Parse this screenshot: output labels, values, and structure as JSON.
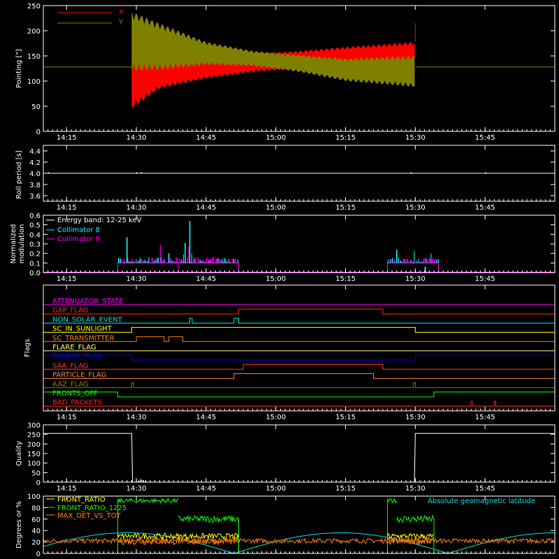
{
  "x_ticks": [
    "14:15",
    "14:30",
    "14:45",
    "15:00",
    "15:15",
    "15:30",
    "15:45"
  ],
  "chart_data": [
    {
      "type": "line",
      "name": "pointing",
      "ylabel": "Pointing [\"]",
      "ylim": [
        0,
        250
      ],
      "yticks": [
        "0",
        "50",
        "100",
        "150",
        "200",
        "250"
      ],
      "legend": [
        "X",
        "Y"
      ],
      "colors": [
        "#ff0000",
        "#808000"
      ],
      "baseline": 128,
      "active_range": [
        "14:29",
        "15:30"
      ],
      "x_envelope": {
        "times": [
          "14:29",
          "14:35",
          "14:45",
          "14:55",
          "15:05",
          "15:15",
          "15:30"
        ],
        "min": [
          45,
          85,
          105,
          118,
          125,
          128,
          125
        ],
        "max": [
          140,
          140,
          148,
          155,
          160,
          168,
          178
        ]
      },
      "y_envelope": {
        "times": [
          "14:29",
          "14:35",
          "14:45",
          "14:55",
          "15:05",
          "15:15",
          "15:30"
        ],
        "min": [
          120,
          122,
          132,
          130,
          118,
          100,
          88
        ],
        "max": [
          238,
          215,
          178,
          160,
          152,
          145,
          150
        ]
      }
    },
    {
      "type": "line",
      "name": "roll-period",
      "ylabel": "Roll period [s]",
      "ylim": [
        3.5,
        4.5
      ],
      "yticks": [
        "3.6",
        "3.8",
        "4.0",
        "4.2",
        "4.4"
      ],
      "value": 4.0
    },
    {
      "type": "line",
      "name": "modulation",
      "ylabel_lines": [
        "Normalized",
        "modulation"
      ],
      "ylim": [
        0,
        0.6
      ],
      "yticks": [
        "0.0",
        "0.1",
        "0.2",
        "0.3",
        "0.4",
        "0.5",
        "0.6"
      ],
      "legend_title": "Energy band: 12-25 keV",
      "legend": [
        "Collimator 8",
        "Collimator 9"
      ],
      "colors": [
        "#00ffff",
        "#ff00ff"
      ],
      "intervals": [
        [
          "14:26",
          "14:52"
        ],
        [
          "15:24",
          "15:35"
        ]
      ],
      "base_level": 0.1
    },
    {
      "type": "line",
      "name": "flags",
      "ylabel": "Flags",
      "flags": [
        {
          "label": "ATTENUATOR_STATE",
          "color": "#ff00ff",
          "high": []
        },
        {
          "label": "GAP_FLAG",
          "color": "#ff2020",
          "high": [
            [
              "14:52",
              "15:23"
            ]
          ]
        },
        {
          "label": "NON_SOLAR_EVENT",
          "color": "#00e0e0",
          "high": [
            [
              "14:41.5",
              "14:42"
            ],
            [
              "14:51",
              "14:52"
            ]
          ]
        },
        {
          "label": "SC_IN_SUNLIGHT",
          "color": "#ffff00",
          "high": [
            [
              "14:29",
              "15:30"
            ]
          ]
        },
        {
          "label": "SC_TRANSMITTER",
          "color": "#ff8000",
          "high": [
            [
              "14:30",
              "14:36"
            ],
            [
              "14:37",
              "14:40"
            ]
          ]
        },
        {
          "label": "FLARE_FLAG",
          "color": "#ffff80",
          "high": []
        },
        {
          "label": "ECLIPSE_FLAG",
          "color": "#0000ff",
          "high": [
            [
              "14:10",
              "14:29"
            ],
            [
              "15:30",
              "16:00"
            ]
          ]
        },
        {
          "label": "SAA_FLAG",
          "color": "#ff3030",
          "high": [
            [
              "14:53",
              "15:23"
            ]
          ]
        },
        {
          "label": "PARTICLE_FLAG",
          "color": "#ff8040",
          "high": [
            [
              "14:51",
              "15:21"
            ]
          ]
        },
        {
          "label": "AAZ_FLAG",
          "color": "#808000",
          "high": [
            [
              "14:29",
              "14:29.4"
            ],
            [
              "15:29.6",
              "15:30"
            ]
          ]
        },
        {
          "label": "FRONTS_OFF",
          "color": "#00ff00",
          "high": [
            [
              "14:10",
              "14:26"
            ],
            [
              "15:34",
              "16:00"
            ]
          ]
        },
        {
          "label": "BAD_PACKETS",
          "color": "#ff2020",
          "high": [
            [
              "15:42",
              "15:42.3"
            ],
            [
              "15:47",
              "15:47.3"
            ]
          ]
        }
      ]
    },
    {
      "type": "line",
      "name": "quality",
      "ylabel": "Quality",
      "ylim": [
        0,
        300
      ],
      "yticks": [
        "0",
        "50",
        "100",
        "150",
        "200",
        "250",
        "300"
      ],
      "x": [
        "14:10",
        "14:29",
        "14:29.2",
        "15:29.8",
        "15:30",
        "16:00"
      ],
      "y": [
        255,
        255,
        0,
        0,
        255,
        255
      ]
    },
    {
      "type": "line",
      "name": "ratios",
      "ylabel": "Degrees or %",
      "ylim": [
        0,
        100
      ],
      "yticks": [
        "0",
        "20",
        "40",
        "60",
        "80",
        "100"
      ],
      "legend": [
        "FRONT_RATIO",
        "FRONT_RATIO_1225",
        "MAX_DET_VS_TOT"
      ],
      "colors": [
        "#ffff00",
        "#00ff00",
        "#ff8000"
      ],
      "annotation": "Absolute geomagnetic latitude",
      "annotation_color": "#00e0e0",
      "intervals": [
        [
          "14:26",
          "14:52"
        ],
        [
          "15:24",
          "15:34"
        ]
      ]
    }
  ]
}
